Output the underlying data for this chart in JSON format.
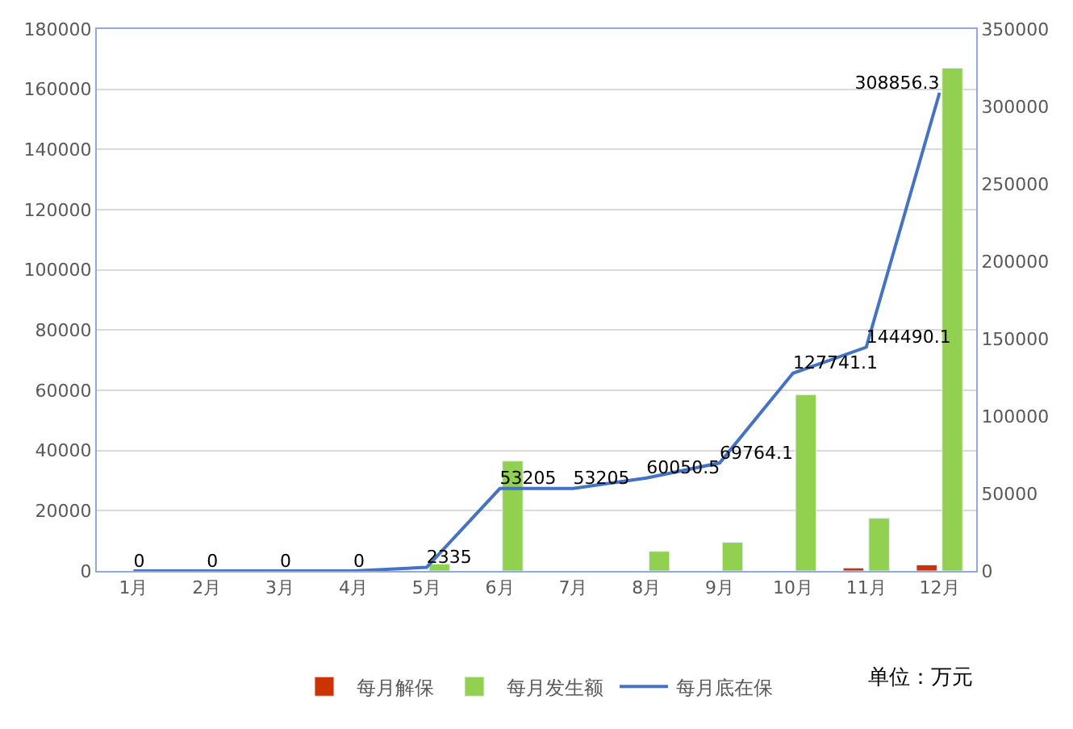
{
  "chart_data": {
    "type": "bar",
    "categories": [
      "1月",
      "2月",
      "3月",
      "4月",
      "5月",
      "6月",
      "7月",
      "8月",
      "9月",
      "10月",
      "11月",
      "12月"
    ],
    "series": [
      {
        "name": "每月解保",
        "color": "#cc3300",
        "values": [
          null,
          null,
          null,
          null,
          null,
          null,
          null,
          null,
          null,
          null,
          1000,
          2000
        ]
      },
      {
        "name": "每月发生额",
        "color": "#92d050",
        "values": [
          null,
          null,
          null,
          null,
          2300,
          36500,
          null,
          6500,
          9500,
          58500,
          17500,
          167000
        ]
      },
      {
        "name": "每月底在保",
        "type": "line",
        "axis": "y2",
        "color": "#4472c4",
        "values": [
          0,
          0,
          0,
          0,
          2335,
          53205,
          53205,
          60050.5,
          69764.1,
          127741.1,
          144490.1,
          308856.3
        ],
        "value_labels": [
          "0",
          "0",
          "0",
          "0",
          "2335",
          "53205",
          "53205",
          "60050.5",
          "69764.1",
          "127741.1",
          "144490.1",
          "308856.3"
        ]
      }
    ],
    "ylim": [
      0,
      180000
    ],
    "yticks": [
      0,
      20000,
      40000,
      60000,
      80000,
      100000,
      120000,
      140000,
      160000,
      180000
    ],
    "y2lim": [
      0,
      350000
    ],
    "y2ticks": [
      0,
      50000,
      100000,
      150000,
      200000,
      250000,
      300000,
      350000
    ],
    "grid": "y",
    "legend": "bottom",
    "marker": "none",
    "line_style": "solid",
    "annotations": [
      "单位：万元"
    ]
  }
}
